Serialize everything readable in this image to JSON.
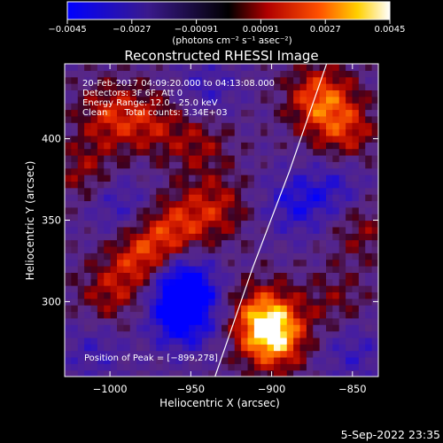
{
  "colorbar": {
    "tick_labels": [
      "−0.0045",
      "−0.0027",
      "−0.00091",
      "0.00091",
      "0.0027",
      "0.0045"
    ],
    "unit_label": "(photons cm⁻² s⁻¹ asec⁻²)",
    "range": [
      -0.0045,
      0.0045
    ]
  },
  "info": {
    "line1": "20‐Feb‐2017 04:09:20.000 to 04:13:08.000",
    "line2": "Detectors: 3F 6F, Att 0",
    "line3": "Energy Range: 12.0 ‐ 25.0 keV",
    "line4": "Clean      Total counts: 3.34E+03",
    "peak": "Position of Peak = [−899,278]"
  },
  "footer": {
    "timestamp": "5‐Sep‐2022 23:35"
  },
  "colors": {
    "negative_max": "#0000ff",
    "negative_mid": "#5a2aa0",
    "zero": "#000000",
    "positive_low": "#c01010",
    "positive_mid": "#ff5000",
    "positive_high": "#ffe000",
    "positive_max": "#ffffff",
    "limb_line": "#ffffff"
  },
  "chart_data": {
    "type": "heatmap",
    "title": "Reconstructed RHESSI Image",
    "xlabel": "Heliocentric X (arcsec)",
    "ylabel": "Heliocentric Y (arcsec)",
    "xlim": [
      -1028,
      -834
    ],
    "ylim": [
      254,
      446
    ],
    "x_ticks": [
      -1000,
      -950,
      -900,
      -850
    ],
    "x_tick_labels": [
      "−1000",
      "−950",
      "−900",
      "−850"
    ],
    "y_ticks": [
      300,
      350,
      400
    ],
    "y_tick_labels": [
      "300",
      "350",
      "400"
    ],
    "peak_position": [
      -899,
      278
    ],
    "solar_limb": [
      [
        -935,
        254
      ],
      [
        -912,
        320
      ],
      [
        -889,
        380
      ],
      [
        -866,
        446
      ]
    ],
    "sources": [
      {
        "x": -899,
        "y": 278,
        "amplitude": 0.0045
      },
      {
        "x": -905,
        "y": 292,
        "amplitude": 0.0032
      },
      {
        "x": -870,
        "y": 425,
        "amplitude": 0.0035
      },
      {
        "x": -855,
        "y": 405,
        "amplitude": 0.0025
      },
      {
        "x": -980,
        "y": 328,
        "amplitude": 0.003
      },
      {
        "x": -960,
        "y": 345,
        "amplitude": 0.0026
      },
      {
        "x": -935,
        "y": 358,
        "amplitude": 0.0022
      },
      {
        "x": -1000,
        "y": 305,
        "amplitude": 0.002
      },
      {
        "x": -1000,
        "y": 415,
        "amplitude": 0.0024
      },
      {
        "x": -975,
        "y": 410,
        "amplitude": 0.002
      },
      {
        "x": -945,
        "y": 398,
        "amplitude": 0.0018
      },
      {
        "x": -1015,
        "y": 380,
        "amplitude": 0.0018
      },
      {
        "x": -845,
        "y": 345,
        "amplitude": 0.0016
      },
      {
        "x": -860,
        "y": 300,
        "amplitude": 0.0014
      },
      {
        "x": -955,
        "y": 310,
        "amplitude": -0.0042
      },
      {
        "x": -955,
        "y": 290,
        "amplitude": -0.0035
      },
      {
        "x": -885,
        "y": 360,
        "amplitude": -0.0022
      },
      {
        "x": -995,
        "y": 360,
        "amplitude": -0.0018
      },
      {
        "x": -860,
        "y": 370,
        "amplitude": -0.0018
      },
      {
        "x": -1010,
        "y": 270,
        "amplitude": -0.0014
      },
      {
        "x": -940,
        "y": 430,
        "amplitude": -0.0016
      },
      {
        "x": -850,
        "y": 270,
        "amplitude": -0.0016
      }
    ]
  }
}
